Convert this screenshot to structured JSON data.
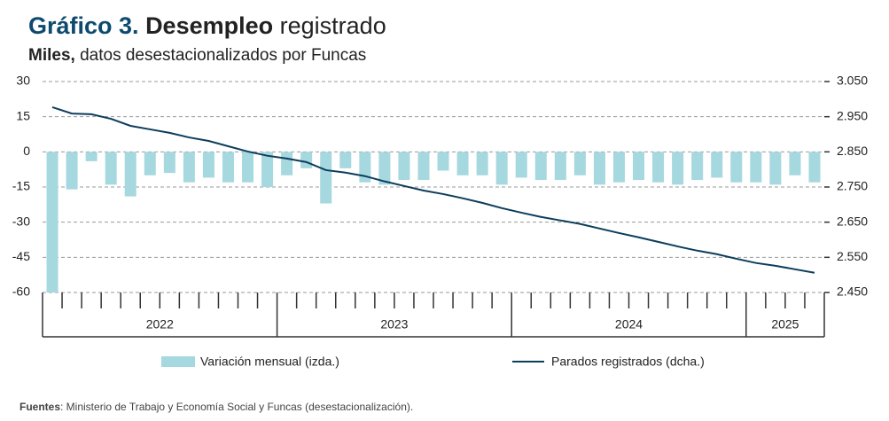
{
  "chart_data": {
    "type": "bar_line",
    "title": [
      "Gráfico 3.",
      "Desempleo",
      "registrado"
    ],
    "subtitle": [
      "Miles,",
      "datos desestacionalizados por Funcas"
    ],
    "categories": [
      null,
      null,
      null,
      null,
      null,
      null,
      null,
      null,
      null,
      null,
      null,
      null,
      null,
      null,
      null,
      null,
      null,
      null,
      null,
      null,
      null,
      null,
      null,
      null,
      null,
      null,
      null,
      null,
      null,
      null,
      null,
      null,
      null,
      null,
      null,
      null,
      null,
      null,
      null,
      null
    ],
    "year_groups": [
      {
        "label": "2022",
        "months": 12
      },
      {
        "label": "2023",
        "months": 12
      },
      {
        "label": "2024",
        "months": 12
      },
      {
        "label": "2025",
        "months": 4
      }
    ],
    "series": [
      {
        "name": "Variación mensual (izda.)",
        "type": "bar",
        "color": "#a6d8df",
        "values": [
          -60,
          -16,
          -4,
          -14,
          -19,
          -10,
          -9,
          -13,
          -11,
          -13,
          -13,
          -15,
          -10,
          -7,
          -22,
          -7,
          -13,
          -14,
          -12,
          -12,
          -8,
          -10,
          -10,
          -14,
          -11,
          -12,
          -12,
          -10,
          -14,
          -13,
          -12,
          -13,
          -14,
          -12,
          -11,
          -13,
          -13,
          -14,
          -10,
          -13
        ]
      },
      {
        "name": "Parados registrados (dcha.)",
        "type": "line",
        "axis": "y2",
        "color": "#0d3d5c",
        "values": [
          2977,
          2959,
          2957,
          2944,
          2924,
          2914,
          2904,
          2891,
          2881,
          2866,
          2851,
          2839,
          2831,
          2821,
          2798,
          2791,
          2781,
          2766,
          2753,
          2740,
          2730,
          2718,
          2705,
          2690,
          2677,
          2665,
          2655,
          2645,
          2632,
          2619,
          2607,
          2594,
          2581,
          2569,
          2559,
          2546,
          2534,
          2526,
          2516,
          2506
        ]
      }
    ],
    "ylim": [
      -60,
      30
    ],
    "yticks": [
      30,
      15,
      0,
      -15,
      -30,
      -45,
      -60
    ],
    "y2lim": [
      2450,
      3050
    ],
    "y2ticks": [
      {
        "value": 3050,
        "label": "3.050"
      },
      {
        "value": 2950,
        "label": "2.950"
      },
      {
        "value": 2850,
        "label": "2.850"
      },
      {
        "value": 2750,
        "label": "2.750"
      },
      {
        "value": 2650,
        "label": "2.650"
      },
      {
        "value": 2550,
        "label": "2.550"
      },
      {
        "value": 2450,
        "label": "2.450"
      }
    ],
    "grid": true,
    "title_color": "#0d4a6e",
    "source": [
      "Fuentes",
      ": Ministerio de Trabajo y Economía Social y Funcas (desestacionalización)."
    ]
  }
}
